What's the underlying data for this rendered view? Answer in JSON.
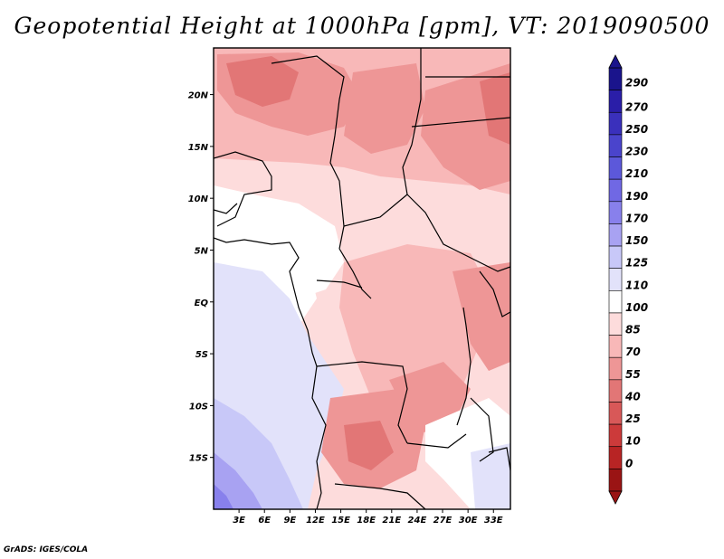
{
  "title": "Geopotential Height at 1000hPa [gpm], VT: 2019090500",
  "credit": "GrADS: IGES/COLA",
  "map": {
    "lat_labels": [
      "20N",
      "15N",
      "10N",
      "5N",
      "EQ",
      "5S",
      "10S",
      "15S"
    ],
    "lon_labels": [
      "3E",
      "6E",
      "9E",
      "12E",
      "15E",
      "18E",
      "21E",
      "24E",
      "27E",
      "30E",
      "33E"
    ],
    "lat_values": [
      20,
      15,
      10,
      5,
      0,
      -5,
      -10,
      -15
    ],
    "lon_values": [
      3,
      6,
      9,
      12,
      15,
      18,
      21,
      24,
      27,
      30,
      33
    ],
    "lat_range": [
      -20,
      24.5
    ],
    "lon_range": [
      0,
      35
    ]
  },
  "colorbar": {
    "labels": [
      "290",
      "270",
      "250",
      "230",
      "210",
      "190",
      "170",
      "150",
      "125",
      "110",
      "100",
      "85",
      "70",
      "55",
      "40",
      "25",
      "10",
      "0"
    ],
    "colors": [
      "#1a148c",
      "#2a1ea8",
      "#3a30bc",
      "#4a44cc",
      "#5c58da",
      "#7068e4",
      "#8880ec",
      "#a8a2f2",
      "#c8c8f8",
      "#e2e2fa",
      "#ffffff",
      "#fddcdc",
      "#f8b8b8",
      "#ee9696",
      "#e27676",
      "#d85858",
      "#cc3a3a",
      "#b82424",
      "#9a1414"
    ]
  }
}
